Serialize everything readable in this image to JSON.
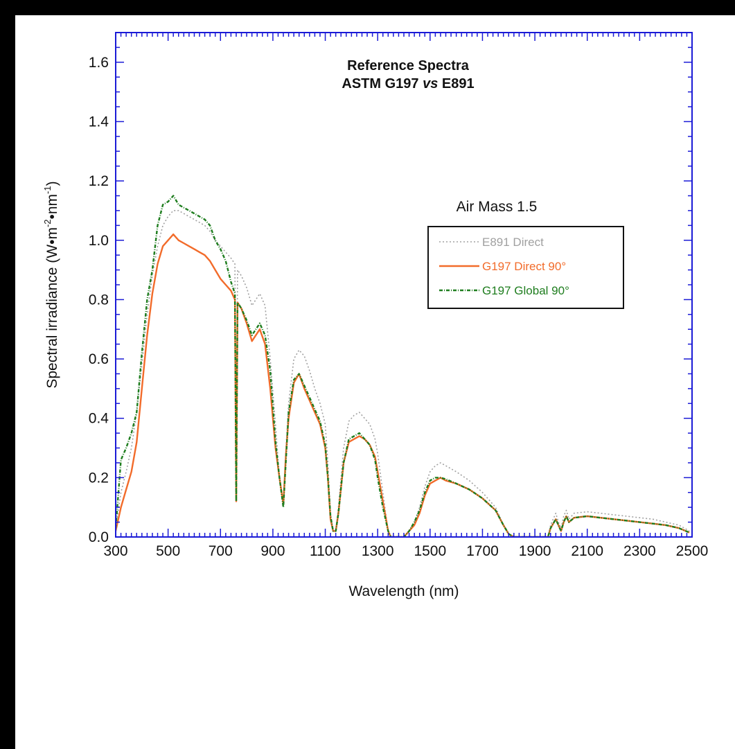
{
  "chart_data": {
    "type": "line",
    "title": "Reference Spectra",
    "subtitle_parts": [
      "ASTM G197 ",
      "vs",
      " E891"
    ],
    "xlabel": "Wavelength (nm)",
    "ylabel_parts": [
      "Spectral irradiance (W•m",
      "-2",
      "•nm",
      "-1",
      ")"
    ],
    "xlim": [
      300,
      2500
    ],
    "ylim": [
      0,
      1.7
    ],
    "xticks": [
      300,
      500,
      700,
      900,
      1100,
      1300,
      1500,
      1700,
      1900,
      2100,
      2300,
      2500
    ],
    "yticks": [
      0.0,
      0.2,
      0.4,
      0.6,
      0.8,
      1.0,
      1.2,
      1.4,
      1.6
    ],
    "ytick_labels": [
      "0.0",
      "0.2",
      "0.4",
      "0.6",
      "0.8",
      "1.0",
      "1.2",
      "1.4",
      "1.6"
    ],
    "xtick_labels": [
      "300",
      "500",
      "700",
      "900",
      "1100",
      "1300",
      "1500",
      "1700",
      "1900",
      "2100",
      "2300",
      "2500"
    ],
    "legend_title": "Air Mass 1.5",
    "legend_position": "upper-right",
    "grid": false,
    "colors": {
      "frame": "#1a1ad6",
      "e891": "#a0a0a0",
      "direct": "#f26b2a",
      "global": "#1e7d1e"
    },
    "series": [
      {
        "name": "E891 Direct",
        "style": "dotted",
        "x": [
          300,
          320,
          340,
          360,
          380,
          400,
          420,
          440,
          460,
          480,
          500,
          520,
          540,
          560,
          580,
          600,
          620,
          640,
          660,
          680,
          700,
          720,
          740,
          755,
          760,
          765,
          780,
          800,
          820,
          850,
          870,
          890,
          910,
          925,
          940,
          950,
          960,
          980,
          1000,
          1020,
          1040,
          1060,
          1080,
          1100,
          1110,
          1120,
          1130,
          1140,
          1150,
          1170,
          1190,
          1210,
          1230,
          1250,
          1270,
          1290,
          1300,
          1320,
          1340,
          1350,
          1400,
          1420,
          1440,
          1460,
          1480,
          1500,
          1520,
          1540,
          1560,
          1600,
          1650,
          1700,
          1750,
          1780,
          1800,
          1820,
          1950,
          1960,
          1980,
          1990,
          2000,
          2010,
          2020,
          2030,
          2050,
          2100,
          2150,
          2200,
          2250,
          2300,
          2350,
          2400,
          2450,
          2490
        ],
        "y": [
          0.03,
          0.15,
          0.22,
          0.3,
          0.42,
          0.58,
          0.75,
          0.88,
          0.98,
          1.05,
          1.08,
          1.1,
          1.1,
          1.09,
          1.08,
          1.07,
          1.06,
          1.05,
          1.03,
          1.0,
          0.98,
          0.96,
          0.94,
          0.92,
          0.12,
          0.9,
          0.88,
          0.84,
          0.78,
          0.82,
          0.78,
          0.6,
          0.38,
          0.2,
          0.12,
          0.3,
          0.45,
          0.6,
          0.63,
          0.61,
          0.56,
          0.5,
          0.45,
          0.38,
          0.25,
          0.08,
          0.02,
          0.02,
          0.1,
          0.3,
          0.39,
          0.41,
          0.42,
          0.4,
          0.38,
          0.33,
          0.28,
          0.15,
          0.02,
          0.0,
          0.0,
          0.02,
          0.05,
          0.1,
          0.17,
          0.22,
          0.24,
          0.25,
          0.24,
          0.22,
          0.19,
          0.15,
          0.1,
          0.04,
          0.01,
          0.0,
          0.0,
          0.04,
          0.08,
          0.05,
          0.03,
          0.07,
          0.09,
          0.06,
          0.08,
          0.085,
          0.08,
          0.075,
          0.07,
          0.065,
          0.06,
          0.05,
          0.04,
          0.02
        ]
      },
      {
        "name": "G197 Direct 90°",
        "style": "solid",
        "x": [
          300,
          320,
          340,
          360,
          380,
          400,
          420,
          440,
          460,
          480,
          500,
          520,
          540,
          560,
          580,
          600,
          620,
          640,
          660,
          680,
          700,
          720,
          740,
          755,
          760,
          765,
          780,
          800,
          820,
          850,
          870,
          890,
          910,
          925,
          940,
          950,
          960,
          980,
          1000,
          1020,
          1040,
          1060,
          1080,
          1100,
          1110,
          1120,
          1130,
          1140,
          1150,
          1170,
          1190,
          1210,
          1230,
          1250,
          1270,
          1290,
          1300,
          1320,
          1340,
          1350,
          1400,
          1420,
          1440,
          1460,
          1480,
          1500,
          1520,
          1540,
          1560,
          1600,
          1650,
          1700,
          1750,
          1780,
          1800,
          1820,
          1950,
          1960,
          1980,
          1990,
          2000,
          2010,
          2020,
          2030,
          2050,
          2100,
          2150,
          2200,
          2250,
          2300,
          2350,
          2400,
          2450,
          2490
        ],
        "y": [
          0.02,
          0.1,
          0.16,
          0.22,
          0.32,
          0.5,
          0.68,
          0.82,
          0.92,
          0.98,
          1.0,
          1.02,
          1.0,
          0.99,
          0.98,
          0.97,
          0.96,
          0.95,
          0.93,
          0.9,
          0.87,
          0.85,
          0.83,
          0.8,
          0.12,
          0.79,
          0.77,
          0.72,
          0.66,
          0.7,
          0.65,
          0.5,
          0.3,
          0.2,
          0.11,
          0.28,
          0.4,
          0.52,
          0.55,
          0.5,
          0.46,
          0.42,
          0.38,
          0.3,
          0.2,
          0.06,
          0.02,
          0.02,
          0.08,
          0.25,
          0.32,
          0.33,
          0.34,
          0.33,
          0.31,
          0.27,
          0.22,
          0.12,
          0.02,
          0.0,
          0.0,
          0.02,
          0.04,
          0.08,
          0.14,
          0.18,
          0.19,
          0.2,
          0.19,
          0.18,
          0.16,
          0.13,
          0.09,
          0.04,
          0.01,
          0.0,
          0.0,
          0.03,
          0.06,
          0.04,
          0.02,
          0.05,
          0.07,
          0.05,
          0.065,
          0.07,
          0.065,
          0.06,
          0.055,
          0.05,
          0.045,
          0.04,
          0.03,
          0.015
        ]
      },
      {
        "name": "G197 Global 90°",
        "style": "dashdot",
        "x": [
          300,
          320,
          340,
          360,
          380,
          400,
          420,
          440,
          460,
          480,
          500,
          520,
          540,
          560,
          580,
          600,
          620,
          640,
          660,
          680,
          700,
          720,
          740,
          755,
          760,
          765,
          780,
          800,
          820,
          850,
          870,
          890,
          910,
          925,
          940,
          950,
          960,
          980,
          1000,
          1020,
          1040,
          1060,
          1080,
          1100,
          1110,
          1120,
          1130,
          1140,
          1150,
          1170,
          1190,
          1210,
          1230,
          1250,
          1270,
          1290,
          1300,
          1320,
          1340,
          1350,
          1400,
          1420,
          1440,
          1460,
          1480,
          1500,
          1520,
          1540,
          1560,
          1600,
          1650,
          1700,
          1750,
          1780,
          1800,
          1820,
          1950,
          1960,
          1980,
          1990,
          2000,
          2010,
          2020,
          2030,
          2050,
          2100,
          2150,
          2200,
          2250,
          2300,
          2350,
          2400,
          2450,
          2490
        ],
        "y": [
          0.03,
          0.26,
          0.3,
          0.35,
          0.42,
          0.62,
          0.8,
          0.9,
          1.05,
          1.12,
          1.13,
          1.15,
          1.12,
          1.11,
          1.1,
          1.09,
          1.08,
          1.07,
          1.05,
          1.0,
          0.97,
          0.93,
          0.86,
          0.82,
          0.12,
          0.79,
          0.77,
          0.73,
          0.68,
          0.72,
          0.68,
          0.56,
          0.32,
          0.2,
          0.1,
          0.26,
          0.42,
          0.53,
          0.55,
          0.51,
          0.47,
          0.43,
          0.39,
          0.31,
          0.2,
          0.07,
          0.02,
          0.02,
          0.08,
          0.25,
          0.33,
          0.34,
          0.35,
          0.33,
          0.31,
          0.26,
          0.2,
          0.1,
          0.02,
          0.0,
          0.0,
          0.02,
          0.05,
          0.09,
          0.15,
          0.19,
          0.2,
          0.2,
          0.195,
          0.18,
          0.16,
          0.13,
          0.09,
          0.04,
          0.01,
          0.0,
          0.0,
          0.03,
          0.06,
          0.04,
          0.02,
          0.05,
          0.07,
          0.05,
          0.065,
          0.07,
          0.065,
          0.06,
          0.055,
          0.05,
          0.045,
          0.04,
          0.03,
          0.015
        ]
      }
    ]
  }
}
